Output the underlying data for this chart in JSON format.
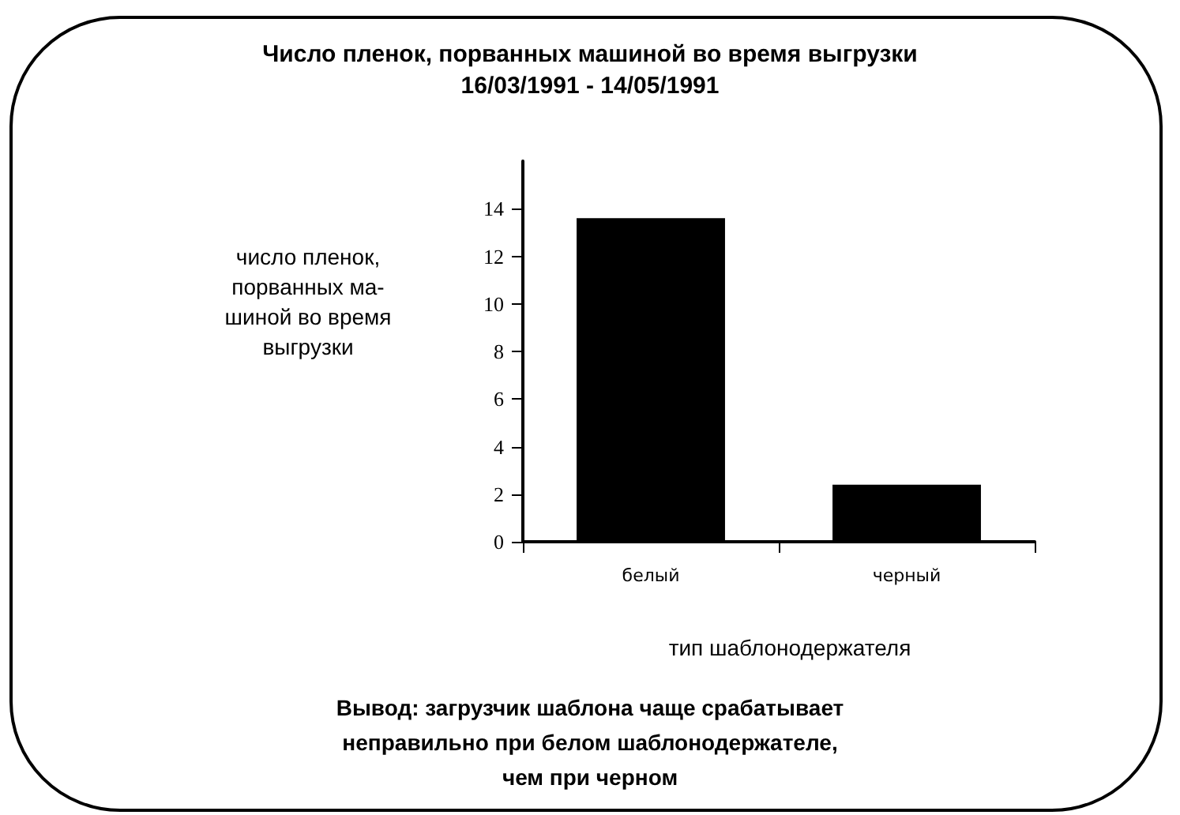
{
  "chart_data": {
    "type": "bar",
    "title": "Число пленок, порванных машиной во время выгрузки",
    "subtitle": "16/03/1991 - 14/05/1991",
    "ylabel": "число пленок,\nпорванных ма-\nшиной во время\nвыгрузки",
    "xlabel": "тип шаблонодержателя",
    "categories": [
      "белый",
      "черный"
    ],
    "values": [
      13.6,
      2.4
    ],
    "color": "#000000",
    "ylim": [
      0,
      16
    ],
    "yticks": [
      0,
      2,
      4,
      6,
      8,
      10,
      12,
      14
    ],
    "grid": false,
    "annotations": [
      "Вывод: загрузчик шаблона чаще срабатывает\nнеправильно при белом шаблонодержателе,\nчем при черном"
    ]
  }
}
